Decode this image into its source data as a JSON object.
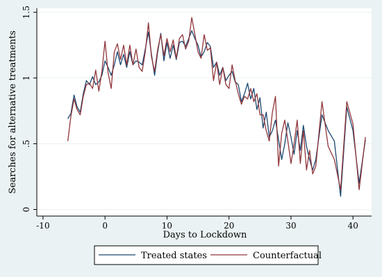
{
  "chart_data": {
    "type": "line",
    "xlabel": "Days to Lockdown",
    "ylabel": "Searches for alternative treatments",
    "xlim": [
      -11,
      43
    ],
    "ylim": [
      -0.05,
      1.53
    ],
    "x_ticks": [
      -10,
      0,
      10,
      20,
      30,
      40
    ],
    "x_tick_labels": [
      "-10",
      "0",
      "10",
      "20",
      "30",
      "40"
    ],
    "y_ticks": [
      0,
      0.5,
      1,
      1.5
    ],
    "y_tick_labels": [
      "0",
      ".5",
      "1",
      "1.5"
    ],
    "grid": "horizontal",
    "legend": "bottom",
    "colors": {
      "treated": "#1a476f",
      "counterfactual": "#90353b",
      "background": "#eaf2f3",
      "plot_bg": "#ffffff"
    },
    "series": [
      {
        "name": "Treated states",
        "x": [
          -6,
          -5.5,
          -5,
          -4.5,
          -4,
          -3.5,
          -3,
          -2.5,
          -2,
          -1.5,
          -1,
          -0.5,
          0,
          0.5,
          1,
          1.5,
          2,
          2.5,
          3,
          3.5,
          4,
          4.5,
          5,
          5.5,
          6,
          6.5,
          7,
          7.5,
          8,
          8.5,
          9,
          9.5,
          10,
          10.5,
          11,
          11.5,
          12,
          12.5,
          13,
          13.5,
          14,
          14.5,
          15,
          15.5,
          16,
          16.5,
          17,
          17.5,
          18,
          18.5,
          19,
          19.5,
          20,
          20.5,
          21,
          21.5,
          22,
          22.5,
          23,
          23.5,
          24,
          24.5,
          25,
          25.5,
          26,
          26.5,
          27,
          27.5,
          28,
          28.5,
          29,
          29.5,
          30,
          30.5,
          31,
          31.5,
          32,
          32.5,
          33,
          33.5,
          34,
          35,
          36,
          37,
          38,
          39,
          40,
          41,
          42
        ],
        "values": [
          0.69,
          0.73,
          0.87,
          0.78,
          0.74,
          0.88,
          0.98,
          0.95,
          1.01,
          0.95,
          0.97,
          1.02,
          1.13,
          1.08,
          1.02,
          1.1,
          1.2,
          1.1,
          1.18,
          1.08,
          1.2,
          1.1,
          1.13,
          1.12,
          1.1,
          1.22,
          1.35,
          1.18,
          1.02,
          1.2,
          1.34,
          1.13,
          1.27,
          1.15,
          1.25,
          1.14,
          1.27,
          1.28,
          1.24,
          1.3,
          1.36,
          1.3,
          1.25,
          1.16,
          1.2,
          1.27,
          1.24,
          1.08,
          1.12,
          1.02,
          1.08,
          0.98,
          1.02,
          1.05,
          0.97,
          0.95,
          0.82,
          0.88,
          0.96,
          0.84,
          0.92,
          0.76,
          0.85,
          0.62,
          0.74,
          0.55,
          0.6,
          0.68,
          0.53,
          0.38,
          0.5,
          0.66,
          0.55,
          0.42,
          0.6,
          0.45,
          0.64,
          0.48,
          0.38,
          0.3,
          0.38,
          0.72,
          0.6,
          0.52,
          0.1,
          0.78,
          0.6,
          0.2,
          0.53
        ]
      },
      {
        "name": "Counterfactual",
        "x": [
          -6,
          -5.5,
          -5,
          -4.5,
          -4,
          -3.5,
          -3,
          -2.5,
          -2,
          -1.5,
          -1,
          -0.5,
          0,
          0.5,
          1,
          1.5,
          2,
          2.5,
          3,
          3.5,
          4,
          4.5,
          5,
          5.5,
          6,
          6.5,
          7,
          7.5,
          8,
          8.5,
          9,
          9.5,
          10,
          10.5,
          11,
          11.5,
          12,
          12.5,
          13,
          13.5,
          14,
          14.5,
          15,
          15.5,
          16,
          16.5,
          17,
          17.5,
          18,
          18.5,
          19,
          19.5,
          20,
          20.5,
          21,
          21.5,
          22,
          22.5,
          23,
          23.5,
          24,
          24.5,
          25,
          25.5,
          26,
          26.5,
          27,
          27.5,
          28,
          28.5,
          29,
          29.5,
          30,
          30.5,
          31,
          31.5,
          32,
          32.5,
          33,
          33.5,
          34,
          35,
          36,
          37,
          38,
          39,
          40,
          41,
          42
        ],
        "values": [
          0.52,
          0.71,
          0.84,
          0.76,
          0.72,
          0.86,
          0.95,
          0.96,
          0.92,
          1.06,
          0.9,
          1.05,
          1.28,
          1.04,
          0.92,
          1.2,
          1.26,
          1.14,
          1.25,
          1.1,
          1.25,
          1.1,
          1.22,
          1.08,
          1.05,
          1.2,
          1.42,
          1.16,
          1.05,
          1.22,
          1.33,
          1.17,
          1.3,
          1.2,
          1.29,
          1.15,
          1.3,
          1.33,
          1.22,
          1.28,
          1.46,
          1.33,
          1.2,
          1.15,
          1.33,
          1.21,
          1.23,
          0.98,
          1.12,
          0.95,
          1.08,
          0.95,
          0.92,
          1.1,
          0.98,
          0.88,
          0.8,
          0.86,
          0.84,
          0.92,
          0.82,
          0.88,
          0.72,
          0.72,
          0.6,
          0.52,
          0.74,
          0.86,
          0.33,
          0.58,
          0.68,
          0.52,
          0.35,
          0.5,
          0.68,
          0.35,
          0.6,
          0.3,
          0.45,
          0.27,
          0.33,
          0.82,
          0.48,
          0.38,
          0.15,
          0.82,
          0.65,
          0.15,
          0.55
        ]
      }
    ]
  }
}
